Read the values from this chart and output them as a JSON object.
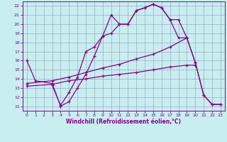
{
  "line1_x": [
    0,
    1,
    3,
    4,
    5,
    6,
    7,
    8,
    9,
    10,
    11,
    12,
    13,
    14,
    15,
    16,
    17,
    18,
    19,
    20,
    21,
    22,
    23
  ],
  "line1_y": [
    16,
    13.8,
    13.5,
    11.0,
    11.5,
    13.0,
    14.5,
    16.5,
    18.7,
    19.0,
    20.0,
    20.0,
    21.5,
    21.8,
    22.2,
    21.8,
    20.5,
    20.5,
    18.5,
    15.8,
    12.2,
    11.2,
    11.2
  ],
  "line2_x": [
    3,
    4,
    5,
    6,
    7,
    8,
    9,
    10,
    11,
    12,
    13,
    14,
    15,
    16,
    17,
    18,
    19
  ],
  "line2_y": [
    13.3,
    11.1,
    12.5,
    14.2,
    17.0,
    17.5,
    18.7,
    21.0,
    20.0,
    20.0,
    21.5,
    21.8,
    22.2,
    21.8,
    20.5,
    18.5,
    18.5
  ],
  "line3_x": [
    0,
    3,
    5,
    7,
    9,
    11,
    13,
    15,
    17,
    19,
    20,
    21,
    22,
    23
  ],
  "line3_y": [
    13.5,
    13.8,
    14.2,
    14.7,
    15.2,
    15.6,
    16.2,
    16.7,
    17.5,
    18.5,
    15.8,
    12.2,
    11.2,
    11.2
  ],
  "line4_x": [
    0,
    3,
    5,
    7,
    9,
    11,
    13,
    15,
    17,
    19,
    20
  ],
  "line4_y": [
    13.2,
    13.4,
    13.8,
    14.0,
    14.3,
    14.5,
    14.7,
    15.0,
    15.3,
    15.5,
    15.5
  ],
  "line_color": "#880088",
  "bg_color": "#c8eef0",
  "grid_color": "#99aacc",
  "xlabel": "Windchill (Refroidissement éolien,°C)",
  "xlim": [
    -0.5,
    23.5
  ],
  "ylim": [
    10.5,
    22.5
  ],
  "xticks": [
    0,
    1,
    2,
    3,
    4,
    5,
    6,
    7,
    8,
    9,
    10,
    11,
    12,
    13,
    14,
    15,
    16,
    17,
    18,
    19,
    20,
    21,
    22,
    23
  ],
  "yticks": [
    11,
    12,
    13,
    14,
    15,
    16,
    17,
    18,
    19,
    20,
    21,
    22
  ]
}
